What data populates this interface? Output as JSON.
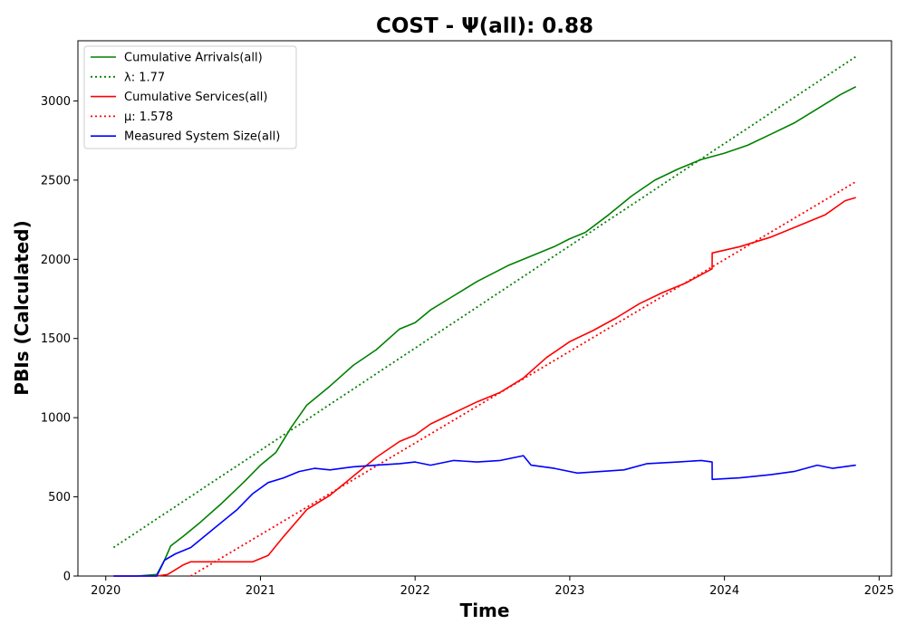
{
  "chart_data": {
    "type": "line",
    "title": "COST -  Ψ(all): 0.88",
    "xlabel": "Time",
    "ylabel": "PBIs (Calculated)",
    "xlim": [
      2019.82,
      2025.08
    ],
    "ylim": [
      0,
      3380
    ],
    "x_ticks": [
      "2020",
      "2021",
      "2022",
      "2023",
      "2024",
      "2025"
    ],
    "y_ticks": [
      "0",
      "500",
      "1000",
      "1500",
      "2000",
      "2500",
      "3000"
    ],
    "grid": false,
    "legend_position": "top-left",
    "series": [
      {
        "name": "Cumulative Arrivals(all)",
        "color": "#008000",
        "style": "solid",
        "x": [
          2020.05,
          2020.2,
          2020.33,
          2020.38,
          2020.42,
          2020.5,
          2020.6,
          2020.75,
          2020.9,
          2021.0,
          2021.1,
          2021.2,
          2021.3,
          2021.45,
          2021.6,
          2021.75,
          2021.9,
          2022.0,
          2022.1,
          2022.25,
          2022.4,
          2022.6,
          2022.75,
          2022.9,
          2023.0,
          2023.1,
          2023.25,
          2023.4,
          2023.55,
          2023.7,
          2023.85,
          2024.0,
          2024.15,
          2024.3,
          2024.45,
          2024.6,
          2024.75,
          2024.85
        ],
        "y": [
          0,
          0,
          10,
          100,
          190,
          250,
          330,
          460,
          600,
          700,
          780,
          940,
          1080,
          1200,
          1330,
          1430,
          1560,
          1600,
          1680,
          1770,
          1860,
          1960,
          2020,
          2080,
          2130,
          2170,
          2280,
          2400,
          2500,
          2570,
          2630,
          2670,
          2720,
          2790,
          2860,
          2950,
          3040,
          3090
        ]
      },
      {
        "name": "λ: 1.77",
        "color": "#008000",
        "style": "dotted",
        "x": [
          2020.05,
          2024.85
        ],
        "y": [
          180,
          3280
        ]
      },
      {
        "name": "Cumulative Services(all)",
        "color": "#ff0000",
        "style": "solid",
        "x": [
          2020.05,
          2020.33,
          2020.4,
          2020.5,
          2020.55,
          2020.7,
          2020.95,
          2021.05,
          2021.15,
          2021.3,
          2021.45,
          2021.6,
          2021.75,
          2021.9,
          2022.0,
          2022.1,
          2022.25,
          2022.4,
          2022.55,
          2022.7,
          2022.85,
          2023.0,
          2023.15,
          2023.3,
          2023.45,
          2023.6,
          2023.75,
          2023.92,
          2023.921,
          2024.1,
          2024.3,
          2024.5,
          2024.65,
          2024.78,
          2024.85
        ],
        "y": [
          0,
          0,
          10,
          70,
          90,
          90,
          90,
          130,
          250,
          420,
          510,
          630,
          750,
          850,
          890,
          960,
          1030,
          1100,
          1160,
          1250,
          1380,
          1480,
          1550,
          1630,
          1720,
          1790,
          1850,
          1940,
          2040,
          2080,
          2140,
          2220,
          2280,
          2370,
          2390
        ]
      },
      {
        "name": "μ: 1.578",
        "color": "#ff0000",
        "style": "dotted",
        "x": [
          2020.55,
          2024.85
        ],
        "y": [
          0,
          2490
        ]
      },
      {
        "name": "Measured System Size(all)",
        "color": "#0000ff",
        "style": "solid",
        "x": [
          2020.05,
          2020.33,
          2020.38,
          2020.45,
          2020.55,
          2020.7,
          2020.85,
          2020.95,
          2021.05,
          2021.15,
          2021.25,
          2021.35,
          2021.45,
          2021.6,
          2021.75,
          2021.9,
          2022.0,
          2022.1,
          2022.25,
          2022.4,
          2022.55,
          2022.7,
          2022.75,
          2022.9,
          2023.05,
          2023.2,
          2023.35,
          2023.5,
          2023.7,
          2023.85,
          2023.92,
          2023.921,
          2024.1,
          2024.3,
          2024.45,
          2024.6,
          2024.7,
          2024.85
        ],
        "y": [
          0,
          0,
          100,
          140,
          180,
          300,
          420,
          520,
          590,
          620,
          660,
          680,
          670,
          690,
          700,
          710,
          720,
          700,
          730,
          720,
          730,
          760,
          700,
          680,
          650,
          660,
          670,
          710,
          720,
          730,
          720,
          610,
          620,
          640,
          660,
          700,
          680,
          700
        ]
      }
    ]
  }
}
